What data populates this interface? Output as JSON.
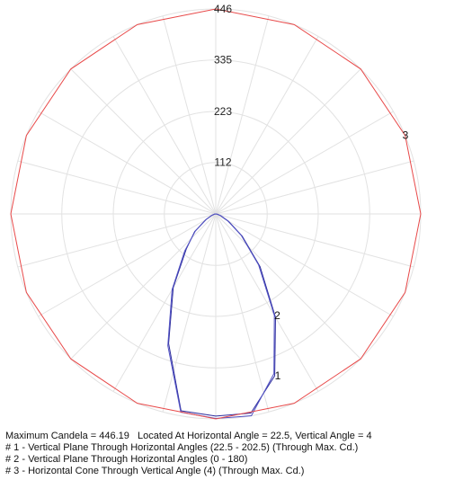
{
  "chart_data": {
    "type": "polar",
    "rlim": [
      0,
      446
    ],
    "rticks": [
      112,
      223,
      335,
      446
    ],
    "grid": true,
    "series": [
      {
        "name": "1",
        "color": "#2b2b9c",
        "plane": "vertical",
        "angles": [
          -90,
          -80,
          -70,
          -60,
          -50,
          -40,
          -30,
          -20,
          -10,
          0,
          10,
          20,
          30,
          40,
          50,
          60,
          70,
          80,
          90
        ],
        "values": [
          0,
          3,
          10,
          25,
          60,
          100,
          185,
          300,
          435,
          440,
          440,
          375,
          260,
          150,
          75,
          32,
          12,
          4,
          0
        ]
      },
      {
        "name": "2",
        "color": "#5252c4",
        "plane": "vertical",
        "angles": [
          -90,
          -80,
          -70,
          -60,
          -50,
          -40,
          -30,
          -20,
          -10,
          0,
          10,
          20,
          30,
          40,
          50,
          60,
          70,
          80,
          90
        ],
        "values": [
          0,
          3,
          9,
          24,
          58,
          105,
          190,
          305,
          438,
          445,
          446,
          370,
          255,
          145,
          72,
          30,
          11,
          3,
          0
        ]
      },
      {
        "name": "3",
        "color": "#e84a4a",
        "plane": "horizontal",
        "angles": [
          0,
          22.5,
          45,
          67.5,
          90,
          112.5,
          135,
          157.5,
          180,
          202.5,
          225,
          247.5,
          270,
          292.5,
          315,
          337.5
        ],
        "values": [
          446,
          446,
          446,
          446,
          446,
          446,
          446,
          446,
          446,
          446,
          446,
          446,
          446,
          446,
          446,
          446
        ]
      }
    ],
    "footer": [
      "Maximum Candela = 446.19   Located At Horizontal Angle = 22.5, Vertical Angle = 4",
      "# 1 - Vertical Plane Through Horizontal Angles (22.5 - 202.5) (Through Max. Cd.)",
      "# 2 - Vertical Plane Through Horizontal Angles (0 - 180)",
      "# 3 - Horizontal Cone Through Vertical Angle (4) (Through Max. Cd.)"
    ]
  }
}
